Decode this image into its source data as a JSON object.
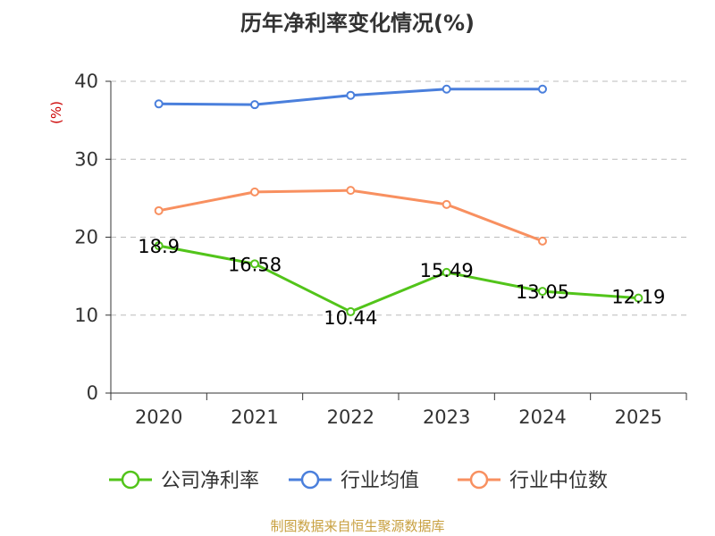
{
  "chart_data": {
    "type": "line",
    "title": "历年净利率变化情况(%)",
    "ylabel": "(%)",
    "xlabel": "",
    "ylim": [
      0,
      40
    ],
    "yticks": [
      0,
      10,
      20,
      30,
      40
    ],
    "categories": [
      "2020",
      "2021",
      "2022",
      "2023",
      "2024",
      "2025"
    ],
    "grid": true,
    "legend": "bottom",
    "series": [
      {
        "name": "公司净利率",
        "color": "#52c41a",
        "values": [
          18.9,
          16.58,
          10.44,
          15.49,
          13.05,
          12.19
        ],
        "labels": [
          "18.9",
          "16.58",
          "10.44",
          "15.49",
          "13.05",
          "12.19"
        ]
      },
      {
        "name": "行业均值",
        "color": "#4a7fdc",
        "values": [
          37.1,
          37.0,
          38.2,
          39.0,
          39.0,
          null
        ],
        "labels": []
      },
      {
        "name": "行业中位数",
        "color": "#f89060",
        "values": [
          23.4,
          25.8,
          26.0,
          24.2,
          19.5,
          null
        ],
        "labels": []
      }
    ]
  },
  "source": "制图数据来自恒生聚源数据库",
  "colors": {
    "ylabel": "#cc0000",
    "source": "#c8a040",
    "axis": "#333333",
    "grid": "#bbbbbb"
  }
}
